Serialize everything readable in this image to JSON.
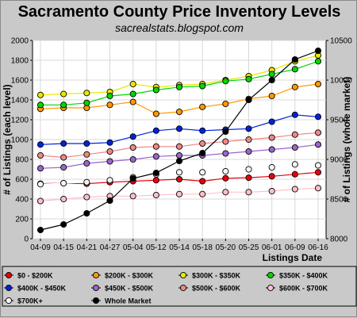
{
  "chart_data": {
    "type": "line",
    "title": "Sacramento County Price Inventory Levels",
    "subtitle": "sacrealstats.blogspot.com",
    "xlabel": "Listings Date",
    "ylabel_left": "# of Listings (each level)",
    "ylabel_right": "# of Listings (whole market)",
    "x": [
      "04-09",
      "04-15",
      "04-21",
      "04-27",
      "05-04",
      "05-12",
      "05-14",
      "05-18",
      "05-20",
      "05-25",
      "06-01",
      "06-09",
      "06-16"
    ],
    "ylim_left": [
      0,
      2000
    ],
    "yticks_left": [
      0,
      200,
      400,
      600,
      800,
      1000,
      1200,
      1400,
      1600,
      1800,
      2000
    ],
    "ylim_right": [
      8000,
      10500
    ],
    "yticks_right": [
      8000,
      8500,
      9000,
      9500,
      10000,
      10500
    ],
    "grid": true,
    "legend_position": "bottom",
    "series": [
      {
        "name": "$0 - $200K",
        "color": "#e8000b",
        "axis": "left",
        "values": [
          555,
          560,
          555,
          570,
          580,
          590,
          600,
          580,
          610,
          615,
          630,
          650,
          670
        ]
      },
      {
        "name": "$200K - $300K",
        "color": "#ff9900",
        "axis": "left",
        "values": [
          1310,
          1320,
          1320,
          1350,
          1380,
          1260,
          1280,
          1330,
          1360,
          1410,
          1440,
          1530,
          1560
        ]
      },
      {
        "name": "$300K - $350K",
        "color": "#e8e800",
        "axis": "left",
        "values": [
          1450,
          1460,
          1470,
          1480,
          1560,
          1530,
          1550,
          1560,
          1600,
          1640,
          1700,
          1790,
          1850
        ]
      },
      {
        "name": "$350K - $400K",
        "color": "#00d800",
        "axis": "left",
        "values": [
          1350,
          1350,
          1370,
          1440,
          1460,
          1500,
          1530,
          1540,
          1590,
          1610,
          1660,
          1710,
          1790
        ]
      },
      {
        "name": "$400K - $450K",
        "color": "#0022dd",
        "axis": "left",
        "values": [
          950,
          960,
          960,
          970,
          1030,
          1090,
          1110,
          1090,
          1100,
          1110,
          1180,
          1250,
          1230
        ]
      },
      {
        "name": "$450K - $500K",
        "color": "#9966cc",
        "axis": "left",
        "values": [
          710,
          720,
          760,
          780,
          800,
          830,
          840,
          840,
          860,
          880,
          900,
          920,
          950
        ]
      },
      {
        "name": "$500K - $600K",
        "color": "#ee8888",
        "axis": "left",
        "values": [
          840,
          820,
          850,
          880,
          920,
          930,
          930,
          960,
          980,
          1000,
          1020,
          1050,
          1070
        ]
      },
      {
        "name": "$600K - $700K",
        "color": "#ffc0cb",
        "axis": "left",
        "values": [
          380,
          400,
          420,
          430,
          430,
          440,
          450,
          450,
          470,
          470,
          480,
          500,
          510
        ]
      },
      {
        "name": "$700K+",
        "color": "#f5f5f5",
        "axis": "left",
        "values": [
          550,
          560,
          570,
          590,
          620,
          650,
          670,
          670,
          680,
          700,
          720,
          750,
          740
        ]
      },
      {
        "name": "Whole Market",
        "color": "#000000",
        "axis": "right",
        "values": [
          8110,
          8180,
          8320,
          8480,
          8760,
          8830,
          8980,
          9080,
          9350,
          9750,
          10000,
          10260,
          10370
        ]
      }
    ]
  }
}
